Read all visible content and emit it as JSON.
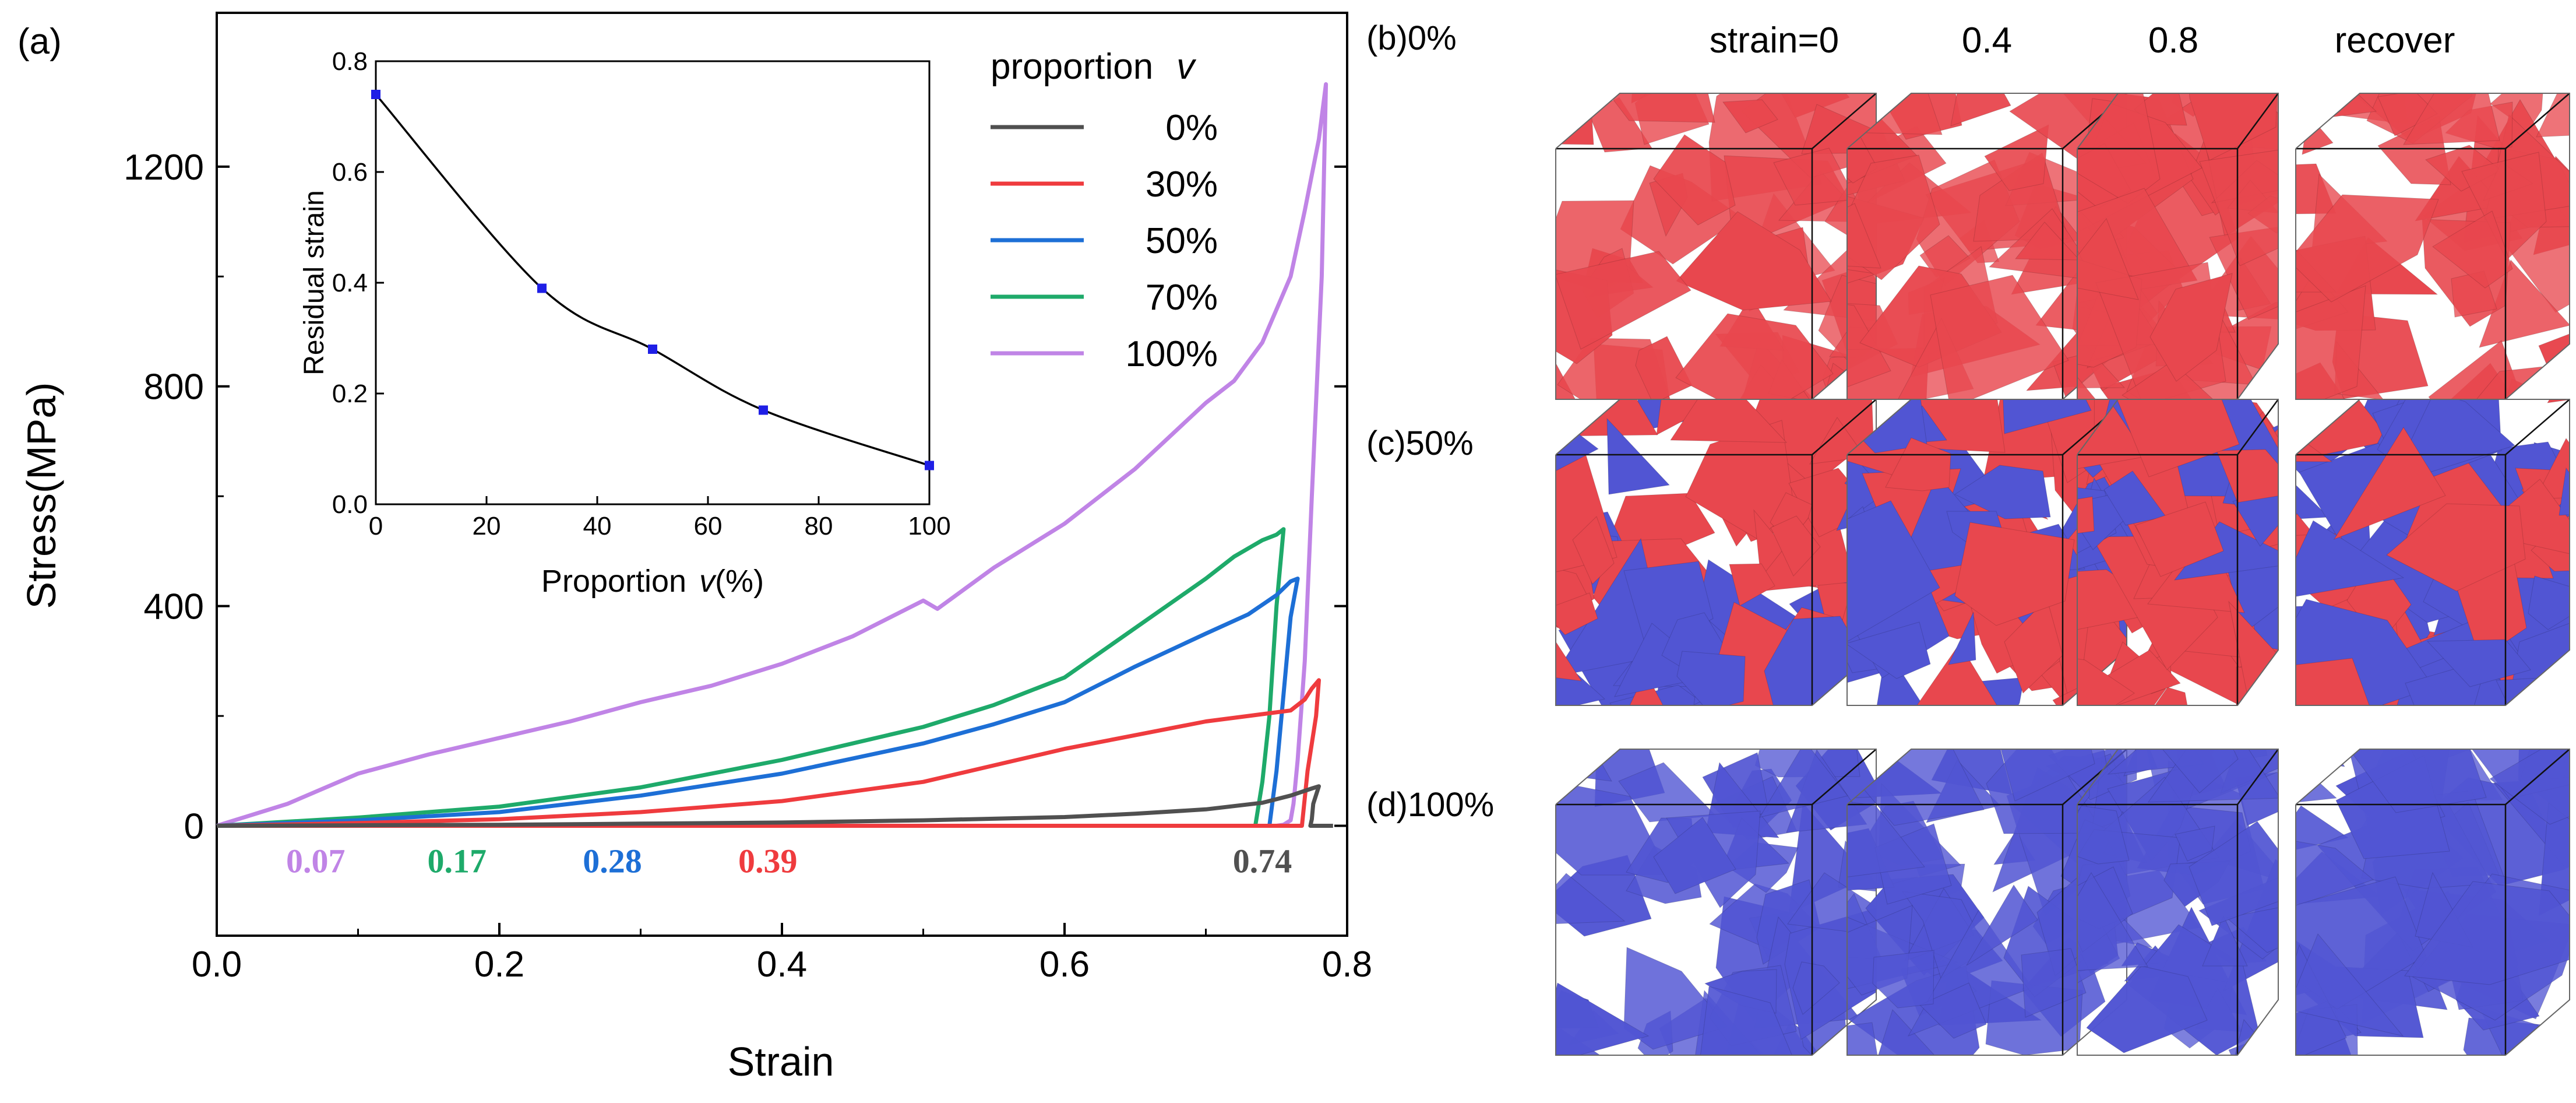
{
  "panel_labels": {
    "a": "(a)",
    "b": "(b)0%",
    "c": "(c)50%",
    "d": "(d)100%"
  },
  "strain_headers": [
    "strain=0",
    "0.4",
    "0.8",
    "recover"
  ],
  "colors": {
    "red_phase": "#e8474e",
    "blue_phase": "#5155d3",
    "s0": "#505050",
    "s30": "#ef3b3e",
    "s50": "#1d6fd6",
    "s70": "#1eaa6a",
    "s100": "#c084e6",
    "inset_marker": "#1f1fe6"
  },
  "chart_data": [
    {
      "type": "line",
      "title": "",
      "xlabel": "Strain",
      "ylabel": "Stress(MPa)",
      "xlim": [
        0,
        0.8
      ],
      "ylim": [
        -200,
        1480
      ],
      "xticks": [
        0.0,
        0.2,
        0.4,
        0.6,
        0.8
      ],
      "xtick_labels": [
        "0.0",
        "0.2",
        "0.4",
        "0.6",
        "0.8"
      ],
      "yticks": [
        0,
        400,
        800,
        1200
      ],
      "ytick_labels": [
        "0",
        "400",
        "800",
        "1200"
      ],
      "legend": {
        "title_text": "proportion",
        "title_var": "v",
        "placement": "top-right"
      },
      "series": [
        {
          "name": "0%",
          "color_key": "s0",
          "x": [
            0,
            0.1,
            0.2,
            0.3,
            0.4,
            0.5,
            0.6,
            0.65,
            0.7,
            0.74,
            0.76,
            0.775,
            0.78,
            0.776,
            0.775,
            0.774,
            0.776,
            0.78,
            0.785,
            0.79
          ],
          "y": [
            0,
            1,
            2,
            4,
            6,
            10,
            16,
            22,
            30,
            42,
            55,
            68,
            72,
            40,
            12,
            0,
            0,
            0,
            0,
            0
          ]
        },
        {
          "name": "30%",
          "color_key": "s30",
          "x": [
            0,
            0.1,
            0.2,
            0.3,
            0.4,
            0.5,
            0.55,
            0.6,
            0.65,
            0.7,
            0.73,
            0.76,
            0.77,
            0.775,
            0.78,
            0.778,
            0.772,
            0.768,
            0.6,
            0.4,
            0.39,
            0.2,
            0.0
          ],
          "y": [
            0,
            5,
            12,
            25,
            45,
            80,
            110,
            140,
            165,
            190,
            200,
            210,
            230,
            250,
            265,
            200,
            100,
            0,
            0,
            0,
            0,
            0,
            0
          ]
        },
        {
          "name": "50%",
          "color_key": "s50",
          "x": [
            0,
            0.1,
            0.2,
            0.3,
            0.4,
            0.5,
            0.55,
            0.6,
            0.65,
            0.7,
            0.73,
            0.75,
            0.76,
            0.765,
            0.76,
            0.755,
            0.75,
            0.745,
            0.6,
            0.4,
            0.28,
            0.0
          ],
          "y": [
            0,
            10,
            25,
            55,
            95,
            150,
            185,
            225,
            290,
            350,
            385,
            420,
            445,
            450,
            380,
            240,
            100,
            0,
            0,
            0,
            0,
            0
          ]
        },
        {
          "name": "70%",
          "color_key": "s70",
          "x": [
            0,
            0.1,
            0.2,
            0.3,
            0.4,
            0.5,
            0.55,
            0.6,
            0.65,
            0.7,
            0.72,
            0.74,
            0.75,
            0.755,
            0.75,
            0.745,
            0.74,
            0.735,
            0.5,
            0.17,
            0.0
          ],
          "y": [
            0,
            15,
            35,
            70,
            120,
            180,
            220,
            270,
            360,
            450,
            490,
            520,
            530,
            540,
            400,
            200,
            80,
            0,
            0,
            0,
            0
          ]
        },
        {
          "name": "100%",
          "color_key": "s100",
          "x": [
            0,
            0.05,
            0.1,
            0.15,
            0.2,
            0.25,
            0.3,
            0.35,
            0.4,
            0.45,
            0.5,
            0.51,
            0.55,
            0.6,
            0.65,
            0.7,
            0.72,
            0.74,
            0.76,
            0.77,
            0.78,
            0.785,
            0.782,
            0.775,
            0.77,
            0.765,
            0.762,
            0.76,
            0.755,
            0.75,
            0.74,
            0.07,
            0.0
          ],
          "y": [
            0,
            40,
            95,
            130,
            160,
            190,
            225,
            255,
            295,
            345,
            410,
            395,
            470,
            550,
            650,
            770,
            810,
            880,
            1000,
            1120,
            1250,
            1350,
            1000,
            600,
            300,
            120,
            40,
            10,
            2,
            0,
            0,
            0,
            0
          ]
        }
      ],
      "annotations": [
        {
          "text": "0.07",
          "x": 0.07,
          "color_key": "s100"
        },
        {
          "text": "0.17",
          "x": 0.17,
          "color_key": "s70"
        },
        {
          "text": "0.28",
          "x": 0.28,
          "color_key": "s50"
        },
        {
          "text": "0.39",
          "x": 0.39,
          "color_key": "s30"
        },
        {
          "text": "0.74",
          "x": 0.74,
          "color_key": "s0"
        }
      ]
    },
    {
      "type": "line",
      "title": "",
      "xlabel_text": "Proportion",
      "xlabel_var": "v",
      "xlabel_unit": "(%)",
      "ylabel": "Residual strain",
      "xlim": [
        0,
        100
      ],
      "ylim": [
        0,
        0.8
      ],
      "xticks": [
        0,
        20,
        40,
        60,
        80,
        100
      ],
      "xtick_labels": [
        "0",
        "20",
        "40",
        "60",
        "80",
        "100"
      ],
      "yticks": [
        0.0,
        0.2,
        0.4,
        0.6,
        0.8
      ],
      "ytick_labels": [
        "0.0",
        "0.2",
        "0.4",
        "0.6",
        "0.8"
      ],
      "series": [
        {
          "name": "Residual strain",
          "x": [
            0,
            30,
            50,
            70,
            100
          ],
          "y": [
            0.74,
            0.39,
            0.28,
            0.17,
            0.07
          ]
        }
      ]
    }
  ]
}
